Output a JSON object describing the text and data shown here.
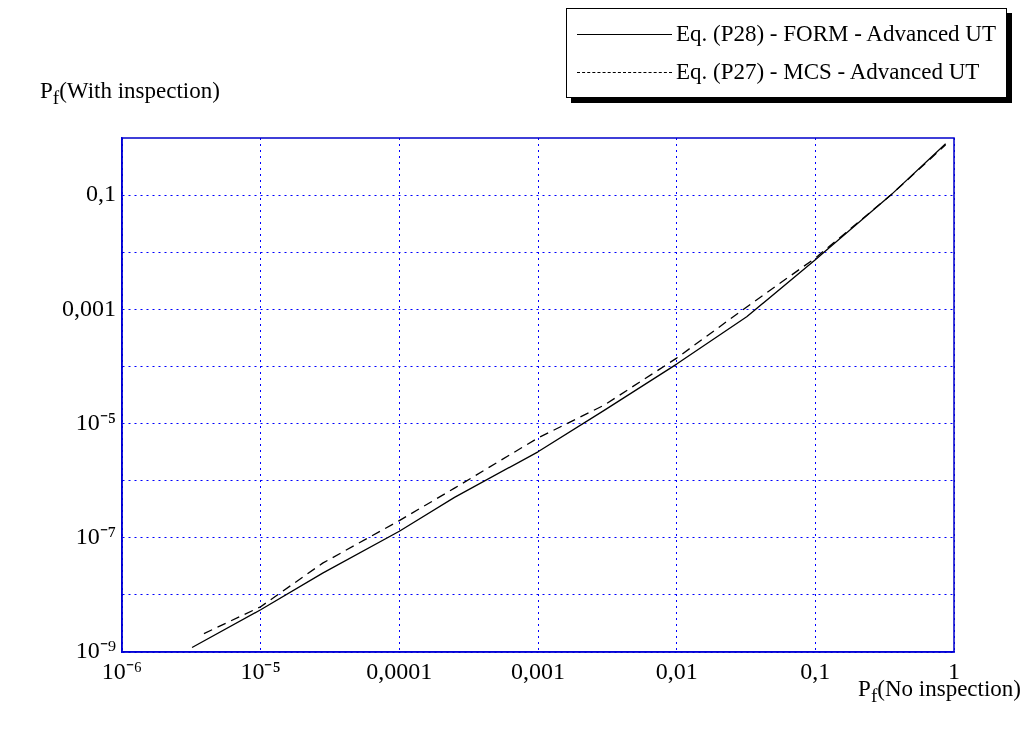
{
  "chart_data": {
    "type": "line",
    "xlabel": "P$_{f}$(No inspection)",
    "ylabel": "P$_{f}$(With inspection)",
    "log": "xy",
    "grid": true,
    "legend": "top right",
    "xlim": [
      1e-06,
      1
    ],
    "ylim": [
      1e-09,
      1
    ],
    "xticks": [
      {
        "value": 1e-06,
        "label": "10⁻⁶"
      },
      {
        "value": 1e-05,
        "label": "10⁻⁵"
      },
      {
        "value": 0.0001,
        "label": "0,0001"
      },
      {
        "value": 0.001,
        "label": "0,001"
      },
      {
        "value": 0.01,
        "label": "0,01"
      },
      {
        "value": 0.1,
        "label": "0,1"
      },
      1
    ],
    "yticks": [
      {
        "value": 1e-09,
        "label": "10⁻⁹"
      },
      {
        "value": 1e-08,
        "label": null
      },
      {
        "value": 1e-07,
        "label": "10⁻⁷"
      },
      {
        "value": 1e-06,
        "label": null
      },
      {
        "value": 1e-05,
        "label": "10⁻⁵"
      },
      {
        "value": 0.0001,
        "label": null
      },
      {
        "value": 0.001,
        "label": "0,001"
      },
      {
        "value": 0.01,
        "label": null
      },
      {
        "value": 0.1,
        "label": "0,1"
      }
    ],
    "series": [
      {
        "name": "Eq. (P28) - FORM - Advanced UT",
        "color": "#000000",
        "line_style": "solid",
        "x": [
          3.2e-06,
          1e-05,
          2.8e-05,
          0.0001,
          0.00025,
          0.001,
          0.003,
          0.01,
          0.032,
          0.1,
          0.35,
          0.87
        ],
        "values": [
          1.2e-09,
          5.5e-09,
          2.4e-08,
          1.3e-07,
          5.1e-07,
          3.2e-06,
          1.7e-05,
          0.00011,
          0.00074,
          0.0074,
          0.1,
          0.79
        ]
      },
      {
        "name": "Eq. (P27) - MCS - Advanced UT",
        "color": "#000000",
        "line_style": "dashed",
        "x": [
          3.9e-06,
          1e-05,
          2.8e-05,
          0.0001,
          0.00025,
          0.001,
          0.003,
          0.01,
          0.032,
          0.1,
          0.35,
          0.87
        ],
        "values": [
          2.1e-09,
          6.2e-09,
          3.6e-08,
          2e-07,
          7.4e-07,
          5.6e-06,
          2.1e-05,
          0.00014,
          0.0011,
          0.0079,
          0.1,
          0.76
        ]
      }
    ]
  }
}
